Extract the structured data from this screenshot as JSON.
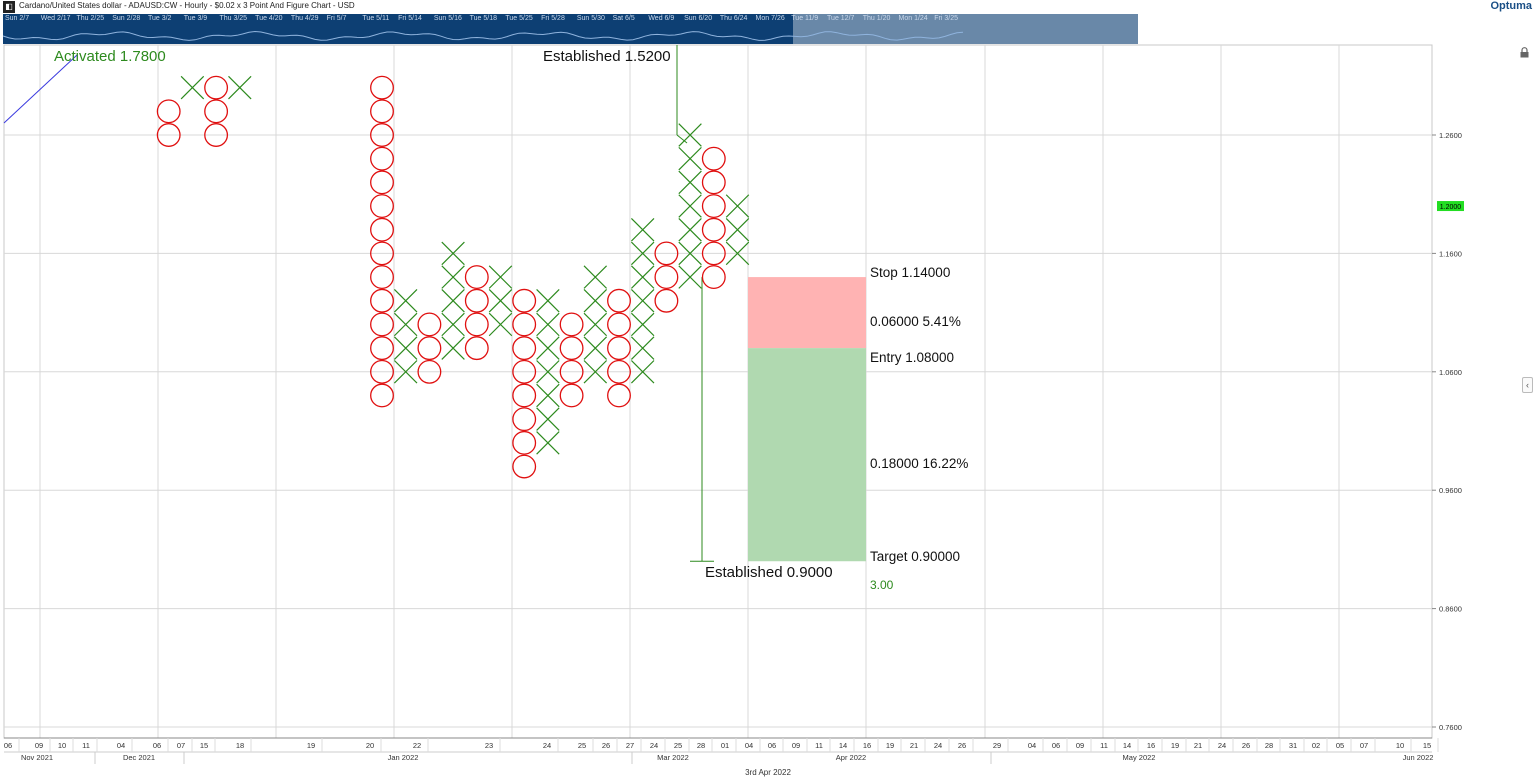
{
  "window": {
    "title": "Cardano/United States dollar - ADAUSD:CW - Hourly - $0.02 x 3 Point And Figure Chart - USD",
    "brand": "Optuma"
  },
  "navigator": {
    "labels": [
      "Sun 2/7",
      "Wed 2/17",
      "Thu 2/25",
      "Sun 2/28",
      "Tue 3/2",
      "Tue 3/9",
      "Thu 3/25",
      "Tue 4/20",
      "Thu 4/29",
      "Fri 5/7",
      "Tue 5/11",
      "Fri 5/14",
      "Sun 5/16",
      "Tue 5/18",
      "Tue 5/25",
      "Fri 5/28",
      "Sun 5/30",
      "Sat 6/5",
      "Wed 6/9",
      "Sun 6/20",
      "Thu 6/24",
      "Mon 7/26",
      "Tue 11/9",
      "Tue 12/7",
      "Thu 1/20",
      "Mon 1/24",
      "Fri 3/25"
    ]
  },
  "chart_data": {
    "type": "point-and-figure",
    "box_size": 0.02,
    "reversal": 3,
    "ylim": [
      0.74,
      1.3
    ],
    "y_ticks": [
      "0.7600",
      "0.8600",
      "0.9600",
      "1.0600",
      "1.1600",
      "1.2600"
    ],
    "last_price_label": "1.2000",
    "columns": [
      {
        "type": "O",
        "col": -9,
        "from": 1.28,
        "to": 1.26
      },
      {
        "type": "X",
        "col": -8,
        "from": 1.3,
        "to": 1.3
      },
      {
        "type": "O",
        "col": -7,
        "from": 1.3,
        "to": 1.26
      },
      {
        "type": "X",
        "col": -6,
        "from": 1.3,
        "to": 1.3
      },
      {
        "type": "O",
        "col": 0,
        "from": 1.3,
        "to": 1.04
      },
      {
        "type": "X",
        "col": 1,
        "from": 1.06,
        "to": 1.12
      },
      {
        "type": "O",
        "col": 2,
        "from": 1.1,
        "to": 1.06
      },
      {
        "type": "X",
        "col": 3,
        "from": 1.08,
        "to": 1.16
      },
      {
        "type": "O",
        "col": 4,
        "from": 1.14,
        "to": 1.08
      },
      {
        "type": "X",
        "col": 5,
        "from": 1.1,
        "to": 1.14
      },
      {
        "type": "O",
        "col": 6,
        "from": 1.12,
        "to": 0.98
      },
      {
        "type": "X",
        "col": 7,
        "from": 1.0,
        "to": 1.12
      },
      {
        "type": "O",
        "col": 8,
        "from": 1.1,
        "to": 1.04
      },
      {
        "type": "X",
        "col": 9,
        "from": 1.06,
        "to": 1.14
      },
      {
        "type": "O",
        "col": 10,
        "from": 1.12,
        "to": 1.04
      },
      {
        "type": "X",
        "col": 11,
        "from": 1.06,
        "to": 1.18
      },
      {
        "type": "O",
        "col": 12,
        "from": 1.16,
        "to": 1.12
      },
      {
        "type": "X",
        "col": 13,
        "from": 1.14,
        "to": 1.26
      },
      {
        "type": "O",
        "col": 14,
        "from": 1.24,
        "to": 1.14
      },
      {
        "type": "X",
        "col": 15,
        "from": 1.16,
        "to": 1.2
      }
    ],
    "annotations": {
      "activated": "Activated 1.7800",
      "established_top": "Established 1.5200",
      "established_bottom": "Established 0.9000",
      "stop": "Stop   1.14000",
      "risk": "0.06000   5.41%",
      "entry": "Entry   1.08000",
      "reward": "0.18000   16.22%",
      "target": "Target   0.90000",
      "ratio": "3.00"
    },
    "trade_levels": {
      "stop": 1.14,
      "entry": 1.08,
      "target": 0.9
    },
    "established_levels": {
      "top": 1.52,
      "bottom": 0.9
    },
    "x_day_ticks": [
      "06",
      "09",
      "10",
      "11",
      "04",
      "06",
      "07",
      "15",
      "18",
      "19",
      "20",
      "22",
      "23",
      "24",
      "25",
      "26",
      "27",
      "24",
      "25",
      "28",
      "01",
      "04",
      "06",
      "09",
      "11",
      "14",
      "16",
      "19",
      "21",
      "24",
      "26",
      "29",
      "04",
      "06",
      "09",
      "11",
      "14",
      "16",
      "19",
      "21",
      "24",
      "26",
      "28",
      "31",
      "02",
      "05",
      "07",
      "10",
      "15"
    ],
    "x_month_labels": [
      "Nov 2021",
      "Dec 2021",
      "Jan 2022",
      "Mar 2022",
      "Apr 2022",
      "May 2022",
      "Jun 2022"
    ],
    "date_caption": "3rd Apr 2022",
    "colors": {
      "x": "#2d8a1e",
      "o": "#e01010",
      "stop_zone": "#ffb3b3",
      "target_zone": "#b0d9b0",
      "grid": "#d8d8d8",
      "navigator": "#0d3f73",
      "activated": "#2d8a1e",
      "last_price_bg": "#22dd22"
    }
  }
}
